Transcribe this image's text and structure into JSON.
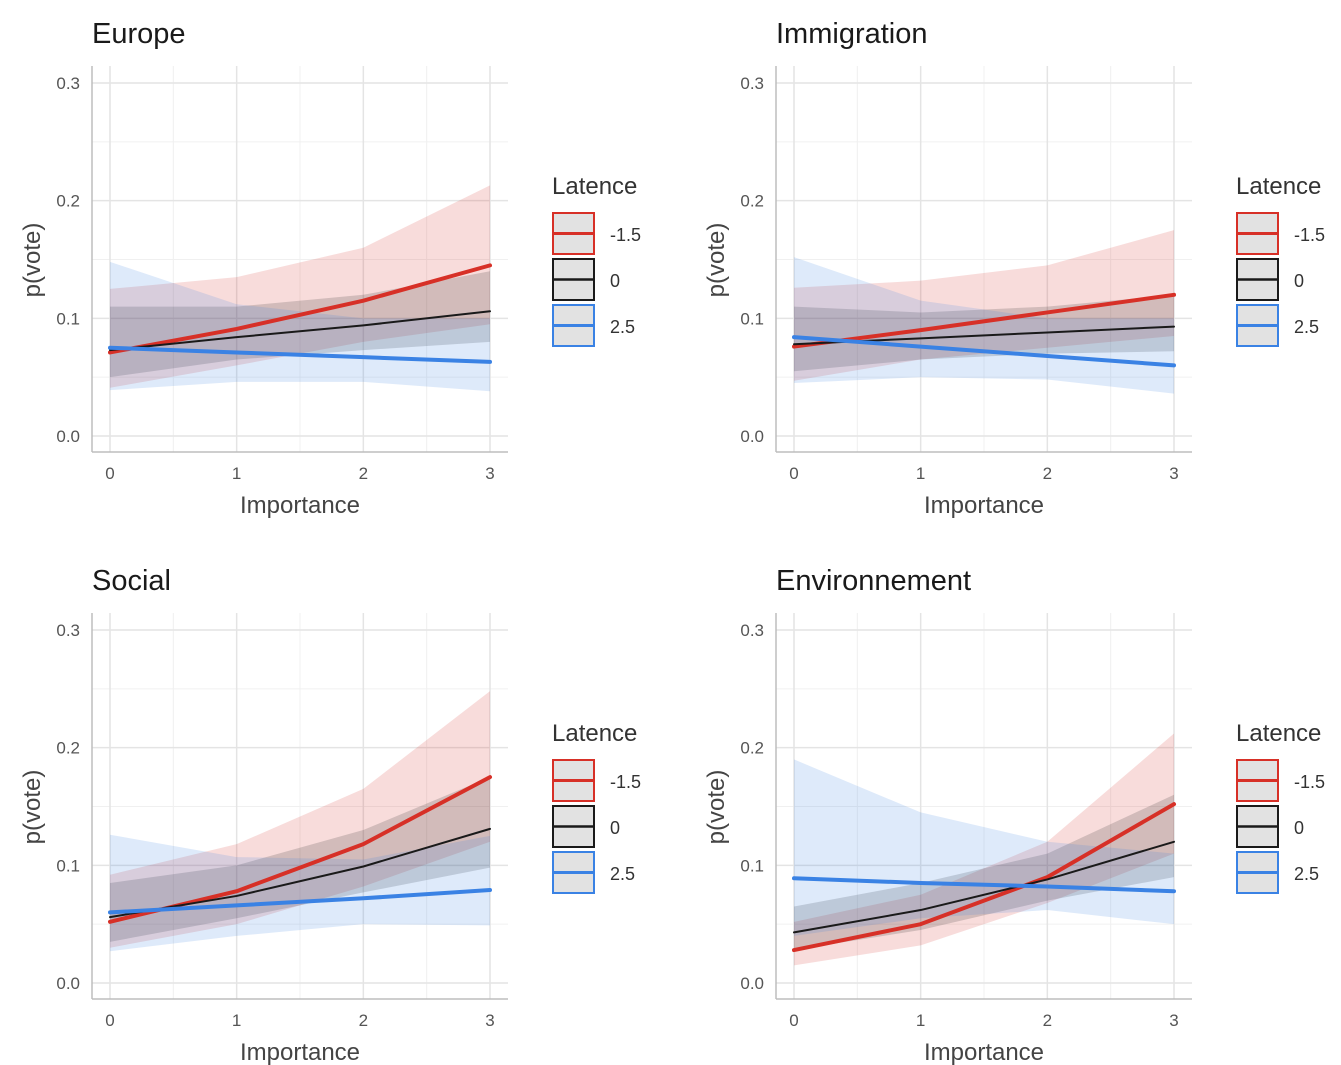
{
  "chart_data": [
    {
      "type": "line",
      "title": "Europe",
      "xlabel": "Importance",
      "ylabel": "p(vote)",
      "xlim": [
        0,
        3
      ],
      "ylim": [
        0,
        0.3
      ],
      "xticks": [
        "0",
        "1",
        "2",
        "3"
      ],
      "yticks": [
        "0.0",
        "0.1",
        "0.2",
        "0.3"
      ],
      "grid": true,
      "legend_title": "Latence",
      "legend_position": "right",
      "x": [
        0,
        1,
        2,
        3
      ],
      "series": [
        {
          "name": "-1.5",
          "color": "#d73027",
          "values": [
            0.071,
            0.091,
            0.115,
            0.145
          ],
          "lower": [
            0.041,
            0.06,
            0.08,
            0.095
          ],
          "upper": [
            0.125,
            0.135,
            0.16,
            0.213
          ]
        },
        {
          "name": "0",
          "color": "#1a1a1a",
          "values": [
            0.073,
            0.084,
            0.094,
            0.106
          ],
          "lower": [
            0.05,
            0.065,
            0.073,
            0.08
          ],
          "upper": [
            0.11,
            0.11,
            0.12,
            0.14
          ]
        },
        {
          "name": "2.5",
          "color": "#3a82e4",
          "values": [
            0.075,
            0.071,
            0.067,
            0.063
          ],
          "lower": [
            0.039,
            0.046,
            0.046,
            0.038
          ],
          "upper": [
            0.148,
            0.112,
            0.1,
            0.1
          ]
        }
      ]
    },
    {
      "type": "line",
      "title": "Immigration",
      "xlabel": "Importance",
      "ylabel": "p(vote)",
      "xlim": [
        0,
        3
      ],
      "ylim": [
        0,
        0.3
      ],
      "xticks": [
        "0",
        "1",
        "2",
        "3"
      ],
      "yticks": [
        "0.0",
        "0.1",
        "0.2",
        "0.3"
      ],
      "grid": true,
      "legend_title": "Latence",
      "legend_position": "right",
      "x": [
        0,
        1,
        2,
        3
      ],
      "series": [
        {
          "name": "-1.5",
          "color": "#d73027",
          "values": [
            0.076,
            0.09,
            0.105,
            0.12
          ],
          "lower": [
            0.047,
            0.065,
            0.075,
            0.085
          ],
          "upper": [
            0.126,
            0.132,
            0.145,
            0.175
          ]
        },
        {
          "name": "0",
          "color": "#1a1a1a",
          "values": [
            0.078,
            0.083,
            0.088,
            0.093
          ],
          "lower": [
            0.055,
            0.065,
            0.07,
            0.072
          ],
          "upper": [
            0.11,
            0.105,
            0.11,
            0.12
          ]
        },
        {
          "name": "2.5",
          "color": "#3a82e4",
          "values": [
            0.084,
            0.076,
            0.068,
            0.06
          ],
          "lower": [
            0.045,
            0.05,
            0.048,
            0.036
          ],
          "upper": [
            0.152,
            0.115,
            0.1,
            0.1
          ]
        }
      ]
    },
    {
      "type": "line",
      "title": "Social",
      "xlabel": "Importance",
      "ylabel": "p(vote)",
      "xlim": [
        0,
        3
      ],
      "ylim": [
        0,
        0.3
      ],
      "xticks": [
        "0",
        "1",
        "2",
        "3"
      ],
      "yticks": [
        "0.0",
        "0.1",
        "0.2",
        "0.3"
      ],
      "grid": true,
      "legend_title": "Latence",
      "legend_position": "right",
      "x": [
        0,
        1,
        2,
        3
      ],
      "series": [
        {
          "name": "-1.5",
          "color": "#d73027",
          "values": [
            0.052,
            0.078,
            0.118,
            0.175
          ],
          "lower": [
            0.03,
            0.05,
            0.082,
            0.12
          ],
          "upper": [
            0.092,
            0.118,
            0.165,
            0.248
          ]
        },
        {
          "name": "0",
          "color": "#1a1a1a",
          "values": [
            0.056,
            0.074,
            0.099,
            0.131
          ],
          "lower": [
            0.035,
            0.055,
            0.077,
            0.098
          ],
          "upper": [
            0.085,
            0.1,
            0.13,
            0.175
          ]
        },
        {
          "name": "2.5",
          "color": "#3a82e4",
          "values": [
            0.06,
            0.066,
            0.072,
            0.079
          ],
          "lower": [
            0.027,
            0.04,
            0.05,
            0.049
          ],
          "upper": [
            0.126,
            0.107,
            0.105,
            0.125
          ]
        }
      ]
    },
    {
      "type": "line",
      "title": "Environnement",
      "xlabel": "Importance",
      "ylabel": "p(vote)",
      "xlim": [
        0,
        3
      ],
      "ylim": [
        0,
        0.3
      ],
      "xticks": [
        "0",
        "1",
        "2",
        "3"
      ],
      "yticks": [
        "0.0",
        "0.1",
        "0.2",
        "0.3"
      ],
      "grid": true,
      "legend_title": "Latence",
      "legend_position": "right",
      "x": [
        0,
        1,
        2,
        3
      ],
      "series": [
        {
          "name": "-1.5",
          "color": "#d73027",
          "values": [
            0.028,
            0.05,
            0.09,
            0.152
          ],
          "lower": [
            0.015,
            0.032,
            0.068,
            0.11
          ],
          "upper": [
            0.052,
            0.075,
            0.12,
            0.212
          ]
        },
        {
          "name": "0",
          "color": "#1a1a1a",
          "values": [
            0.043,
            0.062,
            0.088,
            0.12
          ],
          "lower": [
            0.028,
            0.045,
            0.07,
            0.09
          ],
          "upper": [
            0.065,
            0.085,
            0.11,
            0.16
          ]
        },
        {
          "name": "2.5",
          "color": "#3a82e4",
          "values": [
            0.089,
            0.085,
            0.082,
            0.078
          ],
          "lower": [
            0.04,
            0.055,
            0.062,
            0.05
          ],
          "upper": [
            0.19,
            0.145,
            0.12,
            0.11
          ]
        }
      ]
    }
  ]
}
